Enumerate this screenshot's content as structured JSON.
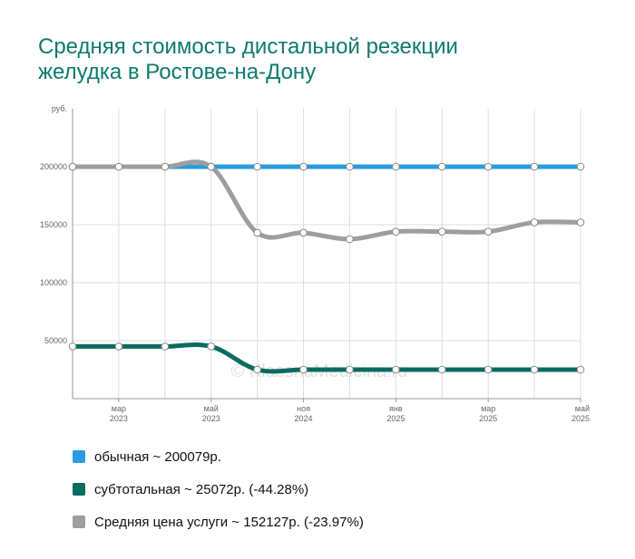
{
  "title": {
    "line1": "Средняя стоимость дистальной резекции",
    "line2": "желудка в Ростове-на-Дону"
  },
  "watermark": "© KlassnaMedicina.ru",
  "chart_data": {
    "type": "line",
    "y_unit": "руб.",
    "ylim": [
      0,
      250000
    ],
    "y_ticks": [
      50000,
      100000,
      150000,
      200000
    ],
    "grid": true,
    "legend_position": "bottom",
    "x": [
      "2023-01",
      "2023-02",
      "2023-04",
      "2023-05",
      "2023-07",
      "2023-09",
      "2023-11",
      "2024-01",
      "2024-03",
      "2024-05",
      "2024-07",
      "2024-09"
    ],
    "x_tick_labels": [
      {
        "month": "мар",
        "year": "2023"
      },
      {
        "month": "май",
        "year": "2023"
      },
      {
        "month": "ноя",
        "year": "2024"
      },
      {
        "month": "янв",
        "year": "2025"
      },
      {
        "month": "мар",
        "year": "2025"
      },
      {
        "month": "май",
        "year": "2025"
      }
    ],
    "series": [
      {
        "name": "обычная",
        "color": "#2a9be0",
        "values": [
          200000,
          200000,
          200000,
          200000,
          200000,
          200000,
          200000,
          200000,
          200000,
          200000,
          200000,
          200000
        ]
      },
      {
        "name": "субтотальная",
        "color": "#0b6b60",
        "values": [
          45000,
          45000,
          45000,
          45000,
          25000,
          25000,
          25000,
          25000,
          25000,
          25000,
          25000,
          25000
        ]
      },
      {
        "name": "Средняя цена услуги",
        "color": "#9e9e9e",
        "values": [
          200000,
          200000,
          200000,
          200000,
          143000,
          143000,
          137500,
          144000,
          144000,
          144000,
          152000,
          152000
        ]
      }
    ]
  },
  "legend": [
    {
      "label": "обычная ~ 200079р.",
      "color": "#2a9be0"
    },
    {
      "label": "субтотальная ~ 25072р. (-44.28%)",
      "color": "#0b6b60"
    },
    {
      "label": "Средняя цена услуги ~ 152127р. (-23.97%)",
      "color": "#9e9e9e"
    }
  ]
}
